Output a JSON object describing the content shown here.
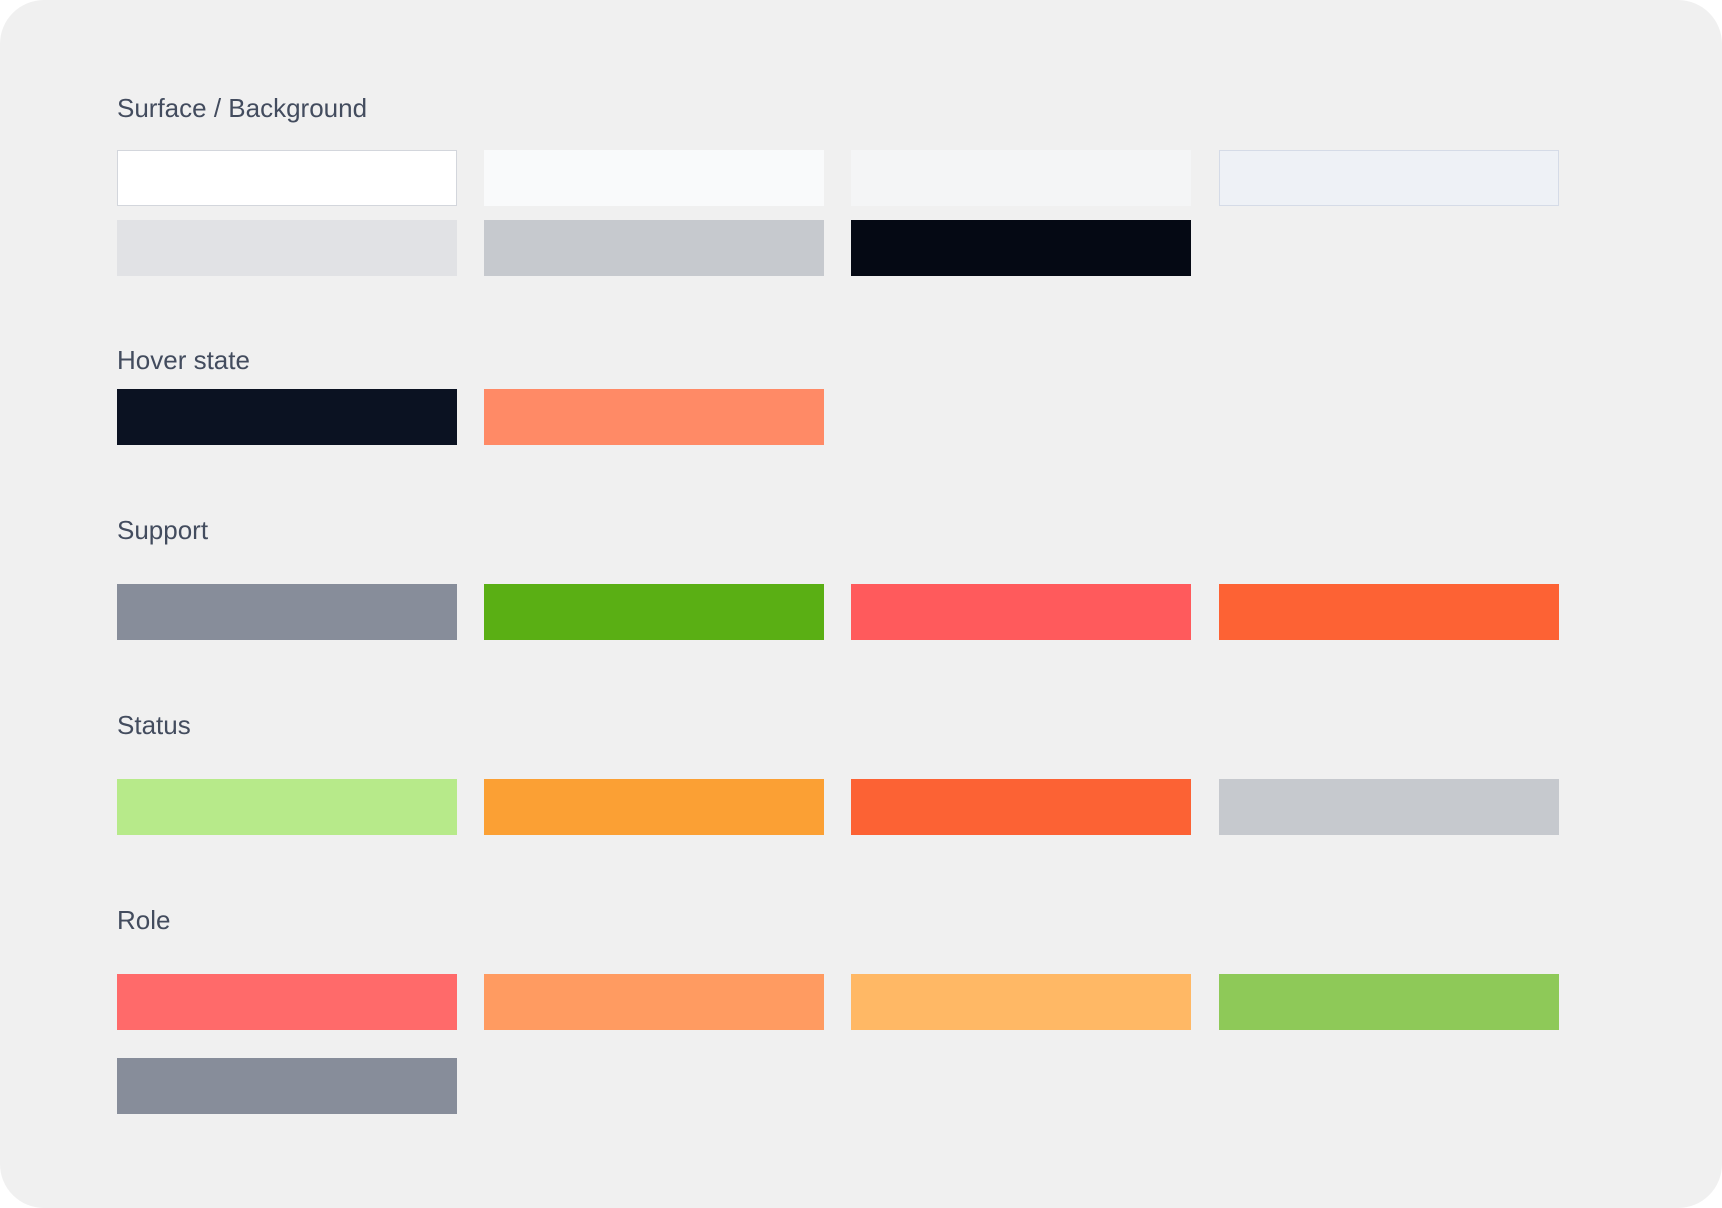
{
  "sections": {
    "surface": {
      "title": "Surface / Background",
      "swatches": [
        {
          "color": "#ffffff",
          "border": "#d3d6dc"
        },
        {
          "color": "#f9fafb",
          "border": null
        },
        {
          "color": "#f4f5f6",
          "border": null
        },
        {
          "color": "#eef1f6",
          "border": "#d5dbe7"
        },
        {
          "color": "#e1e2e5",
          "border": null
        },
        {
          "color": "#c6c9ce",
          "border": null
        },
        {
          "color": "#050914",
          "border": null
        }
      ]
    },
    "hover": {
      "title": "Hover state",
      "swatches": [
        {
          "color": "#0b1222",
          "border": null
        },
        {
          "color": "#ff8a66",
          "border": null
        }
      ]
    },
    "support": {
      "title": "Support",
      "swatches": [
        {
          "color": "#878d9a",
          "border": null
        },
        {
          "color": "#5aaf14",
          "border": null
        },
        {
          "color": "#ff5a5c",
          "border": null
        },
        {
          "color": "#fd6234",
          "border": null
        }
      ]
    },
    "status": {
      "title": "Status",
      "swatches": [
        {
          "color": "#b7ea8a",
          "border": null
        },
        {
          "color": "#fba034",
          "border": null
        },
        {
          "color": "#fc6234",
          "border": null
        },
        {
          "color": "#c6c9ce",
          "border": null
        }
      ]
    },
    "role": {
      "title": "Role",
      "swatches": [
        {
          "color": "#ff6a6a",
          "border": null
        },
        {
          "color": "#ff9b61",
          "border": null
        },
        {
          "color": "#ffb865",
          "border": null
        },
        {
          "color": "#8ec958",
          "border": null
        },
        {
          "color": "#878d9a",
          "border": null
        }
      ]
    }
  }
}
